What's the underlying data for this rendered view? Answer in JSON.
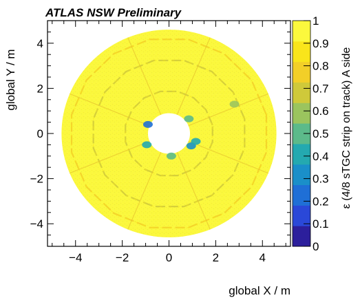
{
  "chart_data": {
    "type": "heatmap",
    "title": "ATLAS NSW Preliminary",
    "xlabel": "global X / m",
    "ylabel": "global Y / m",
    "zlabel": "ε (4/8 sTGC strip on track) A side",
    "xlim": [
      -5.2,
      5.2
    ],
    "ylim": [
      -5.0,
      5.0
    ],
    "zlim": [
      0,
      1
    ],
    "x_ticks": [
      -4,
      -2,
      0,
      2,
      4
    ],
    "x_tick_labels": [
      "−4",
      "−2",
      "0",
      "2",
      "4"
    ],
    "y_ticks": [
      -4,
      -2,
      0,
      2,
      4
    ],
    "y_tick_labels": [
      "−4",
      "−2",
      "0",
      "2",
      "4"
    ],
    "z_ticks": [
      0,
      0.1,
      0.2,
      0.3,
      0.4,
      0.5,
      0.6,
      0.7,
      0.8,
      0.9,
      1
    ],
    "z_tick_labels": [
      "0",
      "0.1",
      "0.2",
      "0.3",
      "0.4",
      "0.5",
      "0.6",
      "0.7",
      "0.8",
      "0.9",
      "1"
    ],
    "colormap": [
      "#2c1f9c",
      "#2a48d8",
      "#1f6fd6",
      "#1a8fc9",
      "#24a9b0",
      "#5cba8a",
      "#9bc45e",
      "#cfc93a",
      "#f2cf28",
      "#f9e51b",
      "#fbf83d"
    ],
    "region": {
      "shape": "annulus",
      "inner_radius": 0.9,
      "outer_radius": 4.6,
      "typical_efficiency": 0.96
    },
    "sector_boundaries": [
      {
        "radius": 1.9,
        "efficiency": 0.72
      },
      {
        "radius": 3.3,
        "efficiency": 0.7
      },
      {
        "radius": 4.25,
        "efficiency": 0.75
      }
    ],
    "low_efficiency_spots": [
      {
        "x": -0.9,
        "y": 0.4,
        "efficiency": 0.15
      },
      {
        "x": -0.95,
        "y": -0.5,
        "efficiency": 0.35
      },
      {
        "x": 0.95,
        "y": -0.55,
        "efficiency": 0.3
      },
      {
        "x": 1.15,
        "y": -0.35,
        "efficiency": 0.4
      },
      {
        "x": 0.85,
        "y": 0.65,
        "efficiency": 0.45
      },
      {
        "x": 0.1,
        "y": -1.0,
        "efficiency": 0.5
      },
      {
        "x": 2.8,
        "y": 1.3,
        "efficiency": 0.6
      }
    ],
    "grid": false,
    "legend": "colorbar-right"
  }
}
